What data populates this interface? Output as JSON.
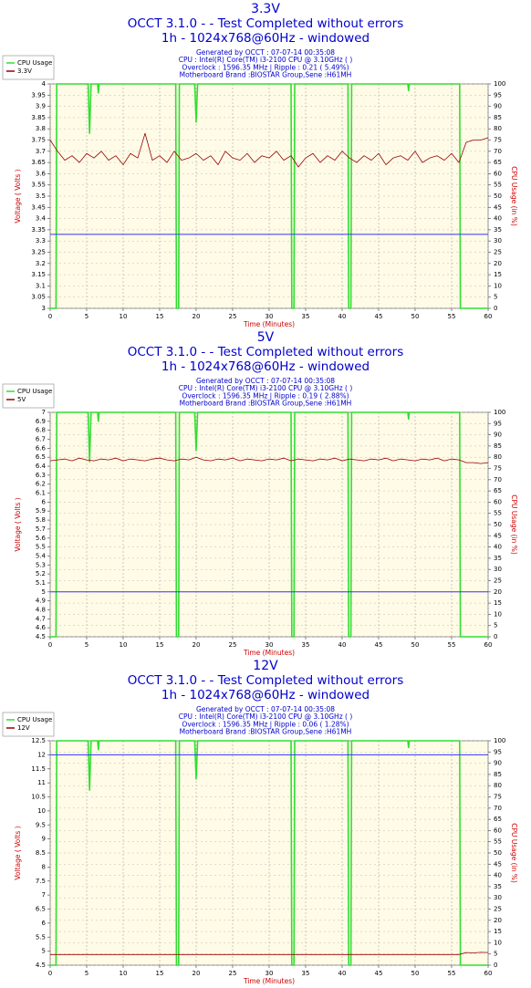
{
  "chart_data": [
    {
      "type": "line",
      "title": "3.3V",
      "subtitle": [
        "OCCT 3.1.0 -  - Test Completed without errors",
        "1h - 1024x768@60Hz - windowed"
      ],
      "info": [
        "Generated by OCCT : 07-07-14 00:35:08",
        "CPU : Intel(R) Core(TM) i3-2100 CPU @ 3.10GHz (  )",
        "Overclock : 1596.35 MHz | Ripple : 0.21 ( 5.49%)",
        "Motherboard Brand :BIOSTAR Group,Sene :H61MH"
      ],
      "xlabel": "Time (Minutes)",
      "ylabel": "Voltage ( Volts )",
      "y2label": "CPU Usage (in %)",
      "xlim": [
        0,
        60
      ],
      "xticks": [
        0,
        5,
        10,
        15,
        20,
        25,
        30,
        35,
        40,
        45,
        50,
        55,
        60
      ],
      "ylim": [
        3,
        4
      ],
      "yticks": [
        3,
        3.05,
        3.1,
        3.15,
        3.2,
        3.25,
        3.3,
        3.35,
        3.4,
        3.45,
        3.5,
        3.55,
        3.6,
        3.65,
        3.7,
        3.75,
        3.8,
        3.85,
        3.9,
        3.95,
        4
      ],
      "y2lim": [
        0,
        100
      ],
      "y2ticks": [
        0,
        5,
        10,
        15,
        20,
        25,
        30,
        35,
        40,
        45,
        50,
        55,
        60,
        65,
        70,
        75,
        80,
        85,
        90,
        95,
        100
      ],
      "grid": true,
      "legend": "upper left",
      "reference_line": {
        "value": 3.33,
        "color": "#3333ff"
      },
      "series": [
        {
          "name": "CPU Usage",
          "color": "#33dd33",
          "axis": "y2",
          "x": [
            0,
            0.8,
            0.9,
            5.2,
            5.4,
            5.6,
            6.5,
            6.6,
            6.7,
            17.2,
            17.3,
            17.6,
            17.7,
            19.8,
            20.0,
            20.2,
            33.0,
            33.1,
            33.4,
            33.5,
            40.8,
            40.9,
            41.2,
            41.3,
            49,
            49.1,
            49.2,
            56.1,
            56.2,
            60
          ],
          "values": [
            0,
            0,
            100,
            100,
            78,
            100,
            100,
            96,
            100,
            100,
            0,
            0,
            100,
            100,
            83,
            100,
            100,
            0,
            0,
            100,
            100,
            0,
            0,
            100,
            100,
            97,
            100,
            100,
            0,
            0
          ]
        },
        {
          "name": "3.3V",
          "color": "#990000",
          "x": [
            0,
            1,
            2,
            3,
            4,
            5,
            6,
            7,
            8,
            9,
            10,
            11,
            12,
            13,
            14,
            15,
            16,
            17,
            18,
            19,
            20,
            21,
            22,
            23,
            24,
            25,
            26,
            27,
            28,
            29,
            30,
            31,
            32,
            33,
            34,
            35,
            36,
            37,
            38,
            39,
            40,
            41,
            42,
            43,
            44,
            45,
            46,
            47,
            48,
            49,
            50,
            51,
            52,
            53,
            54,
            55,
            56,
            57,
            58,
            59,
            60
          ],
          "values": [
            3.75,
            3.7,
            3.66,
            3.68,
            3.65,
            3.69,
            3.67,
            3.7,
            3.66,
            3.68,
            3.64,
            3.69,
            3.67,
            3.78,
            3.66,
            3.68,
            3.65,
            3.7,
            3.66,
            3.67,
            3.69,
            3.66,
            3.68,
            3.64,
            3.7,
            3.67,
            3.66,
            3.69,
            3.65,
            3.68,
            3.67,
            3.7,
            3.66,
            3.68,
            3.63,
            3.67,
            3.69,
            3.65,
            3.68,
            3.66,
            3.7,
            3.67,
            3.65,
            3.68,
            3.66,
            3.69,
            3.64,
            3.67,
            3.68,
            3.66,
            3.7,
            3.65,
            3.67,
            3.68,
            3.66,
            3.69,
            3.65,
            3.74,
            3.75,
            3.75,
            3.76
          ]
        }
      ]
    },
    {
      "type": "line",
      "title": "5V",
      "subtitle": [
        "OCCT 3.1.0 -  - Test Completed without errors",
        "1h - 1024x768@60Hz - windowed"
      ],
      "info": [
        "Generated by OCCT : 07-07-14 00:35:08",
        "CPU : Intel(R) Core(TM) i3-2100 CPU @ 3.10GHz (  )",
        "Overclock : 1596.35 MHz | Ripple : 0.19 ( 2.88%)",
        "Motherboard Brand :BIOSTAR Group,Sene :H61MH"
      ],
      "xlabel": "Time (Minutes)",
      "ylabel": "Voltage ( Volts )",
      "y2label": "CPU Usage (in %)",
      "xlim": [
        0,
        60
      ],
      "xticks": [
        0,
        5,
        10,
        15,
        20,
        25,
        30,
        35,
        40,
        45,
        50,
        55,
        60
      ],
      "ylim": [
        4.5,
        7
      ],
      "yticks": [
        4.5,
        4.6,
        4.7,
        4.8,
        4.9,
        5,
        5.1,
        5.2,
        5.3,
        5.4,
        5.5,
        5.6,
        5.7,
        5.8,
        5.9,
        6,
        6.1,
        6.2,
        6.3,
        6.4,
        6.5,
        6.6,
        6.7,
        6.8,
        6.9,
        7
      ],
      "y2lim": [
        0,
        100
      ],
      "y2ticks": [
        0,
        5,
        10,
        15,
        20,
        25,
        30,
        35,
        40,
        45,
        50,
        55,
        60,
        65,
        70,
        75,
        80,
        85,
        90,
        95,
        100
      ],
      "grid": true,
      "legend": "upper left",
      "reference_line": {
        "value": 5,
        "color": "#3333ff"
      },
      "series": [
        {
          "name": "CPU Usage",
          "color": "#33dd33",
          "axis": "y2",
          "x": [
            0,
            0.8,
            0.9,
            5.2,
            5.4,
            5.6,
            6.5,
            6.6,
            6.7,
            17.2,
            17.3,
            17.6,
            17.7,
            19.8,
            20.0,
            20.2,
            33.0,
            33.1,
            33.4,
            33.5,
            40.8,
            40.9,
            41.2,
            41.3,
            49,
            49.1,
            49.2,
            56.1,
            56.2,
            60
          ],
          "values": [
            0,
            0,
            100,
            100,
            78,
            100,
            100,
            96,
            100,
            100,
            0,
            0,
            100,
            100,
            83,
            100,
            100,
            0,
            0,
            100,
            100,
            0,
            0,
            100,
            100,
            97,
            100,
            100,
            0,
            0
          ]
        },
        {
          "name": "5V",
          "color": "#990000",
          "x": [
            0,
            1,
            2,
            3,
            4,
            5,
            6,
            7,
            8,
            9,
            10,
            11,
            12,
            13,
            14,
            15,
            16,
            17,
            18,
            19,
            20,
            21,
            22,
            23,
            24,
            25,
            26,
            27,
            28,
            29,
            30,
            31,
            32,
            33,
            34,
            35,
            36,
            37,
            38,
            39,
            40,
            41,
            42,
            43,
            44,
            45,
            46,
            47,
            48,
            49,
            50,
            51,
            52,
            53,
            54,
            55,
            56,
            57,
            58,
            59,
            60
          ],
          "values": [
            6.46,
            6.47,
            6.48,
            6.46,
            6.49,
            6.47,
            6.46,
            6.48,
            6.47,
            6.49,
            6.46,
            6.48,
            6.47,
            6.46,
            6.48,
            6.49,
            6.47,
            6.46,
            6.48,
            6.47,
            6.5,
            6.47,
            6.46,
            6.48,
            6.47,
            6.49,
            6.46,
            6.48,
            6.47,
            6.46,
            6.48,
            6.47,
            6.49,
            6.46,
            6.48,
            6.47,
            6.46,
            6.48,
            6.47,
            6.49,
            6.46,
            6.48,
            6.47,
            6.46,
            6.48,
            6.47,
            6.49,
            6.46,
            6.48,
            6.47,
            6.46,
            6.48,
            6.47,
            6.49,
            6.46,
            6.48,
            6.47,
            6.44,
            6.44,
            6.43,
            6.44
          ]
        }
      ]
    },
    {
      "type": "line",
      "title": "12V",
      "subtitle": [
        "OCCT 3.1.0 -  - Test Completed without errors",
        "1h - 1024x768@60Hz - windowed"
      ],
      "info": [
        "Generated by OCCT : 07-07-14 00:35:08",
        "CPU : Intel(R) Core(TM) i3-2100 CPU @ 3.10GHz (  )",
        "Overclock : 1596.35 MHz | Ripple : 0.06 ( 1.28%)",
        "Motherboard Brand :BIOSTAR Group,Sene :H61MH"
      ],
      "xlabel": "Time (Minutes)",
      "ylabel": "Voltage ( Volts )",
      "y2label": "CPU Usage (in %)",
      "xlim": [
        0,
        60
      ],
      "xticks": [
        0,
        5,
        10,
        15,
        20,
        25,
        30,
        35,
        40,
        45,
        50,
        55,
        60
      ],
      "ylim": [
        4.5,
        12.5
      ],
      "yticks": [
        4.5,
        5,
        5.5,
        6,
        6.5,
        7,
        7.5,
        8,
        8.5,
        9,
        9.5,
        10,
        10.5,
        11,
        11.5,
        12,
        12.5
      ],
      "y2lim": [
        0,
        100
      ],
      "y2ticks": [
        0,
        5,
        10,
        15,
        20,
        25,
        30,
        35,
        40,
        45,
        50,
        55,
        60,
        65,
        70,
        75,
        80,
        85,
        90,
        95,
        100
      ],
      "grid": true,
      "legend": "upper left",
      "reference_line": {
        "value": 12,
        "color": "#3333ff"
      },
      "series": [
        {
          "name": "CPU Usage",
          "color": "#33dd33",
          "axis": "y2",
          "x": [
            0,
            0.8,
            0.9,
            5.2,
            5.4,
            5.6,
            6.5,
            6.6,
            6.7,
            17.2,
            17.3,
            17.6,
            17.7,
            19.8,
            20.0,
            20.2,
            33.0,
            33.1,
            33.4,
            33.5,
            40.8,
            40.9,
            41.2,
            41.3,
            49,
            49.1,
            49.2,
            56.1,
            56.2,
            60
          ],
          "values": [
            0,
            0,
            100,
            100,
            78,
            100,
            100,
            96,
            100,
            100,
            0,
            0,
            100,
            100,
            83,
            100,
            100,
            0,
            0,
            100,
            100,
            0,
            0,
            100,
            100,
            97,
            100,
            100,
            0,
            0
          ]
        },
        {
          "name": "12V",
          "color": "#990000",
          "x": [
            0,
            1,
            2,
            3,
            4,
            5,
            6,
            7,
            8,
            9,
            10,
            11,
            12,
            13,
            14,
            15,
            16,
            17,
            18,
            19,
            20,
            21,
            22,
            23,
            24,
            25,
            26,
            27,
            28,
            29,
            30,
            31,
            32,
            33,
            34,
            35,
            36,
            37,
            38,
            39,
            40,
            41,
            42,
            43,
            44,
            45,
            46,
            47,
            48,
            49,
            50,
            51,
            52,
            53,
            54,
            55,
            56,
            57,
            58,
            59,
            60
          ],
          "values": [
            4.88,
            4.88,
            4.88,
            4.88,
            4.88,
            4.88,
            4.88,
            4.88,
            4.88,
            4.88,
            4.88,
            4.88,
            4.88,
            4.88,
            4.88,
            4.88,
            4.88,
            4.88,
            4.88,
            4.88,
            4.88,
            4.88,
            4.88,
            4.88,
            4.88,
            4.88,
            4.88,
            4.88,
            4.88,
            4.88,
            4.88,
            4.88,
            4.88,
            4.88,
            4.88,
            4.88,
            4.88,
            4.88,
            4.88,
            4.88,
            4.88,
            4.88,
            4.88,
            4.88,
            4.88,
            4.88,
            4.88,
            4.88,
            4.88,
            4.88,
            4.88,
            4.88,
            4.88,
            4.88,
            4.88,
            4.88,
            4.88,
            4.95,
            4.94,
            4.96,
            4.95
          ]
        }
      ]
    }
  ]
}
